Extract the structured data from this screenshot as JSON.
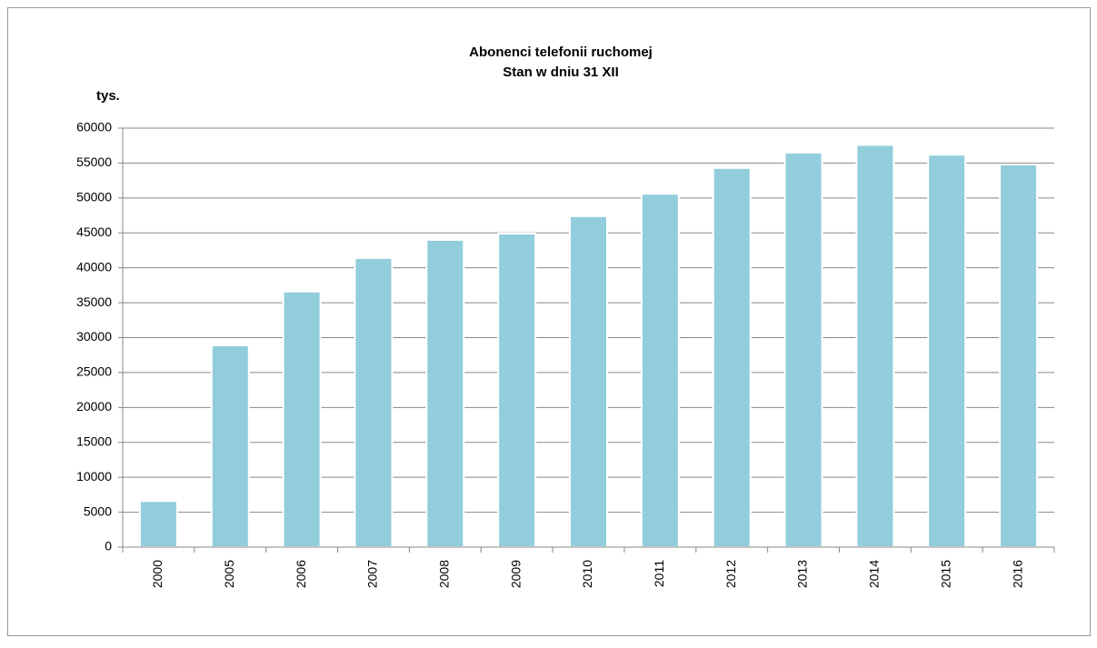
{
  "chart_data": {
    "type": "bar",
    "title": "Abonenci telefonii ruchomej",
    "subtitle": "Stan w dniu 31 XII",
    "y_label": "tys.",
    "categories": [
      "2000",
      "2005",
      "2006",
      "2007",
      "2008",
      "2009",
      "2010",
      "2011",
      "2012",
      "2013",
      "2014",
      "2015",
      "2016"
    ],
    "values": [
      6600,
      28900,
      36600,
      41400,
      44000,
      44900,
      47400,
      50600,
      54300,
      56500,
      57600,
      56200,
      54800
    ],
    "color": "#92cddc",
    "ylim": [
      0,
      60000
    ],
    "yticks": [
      0,
      5000,
      10000,
      15000,
      20000,
      25000,
      30000,
      35000,
      40000,
      45000,
      50000,
      55000,
      60000
    ],
    "grid": true
  }
}
